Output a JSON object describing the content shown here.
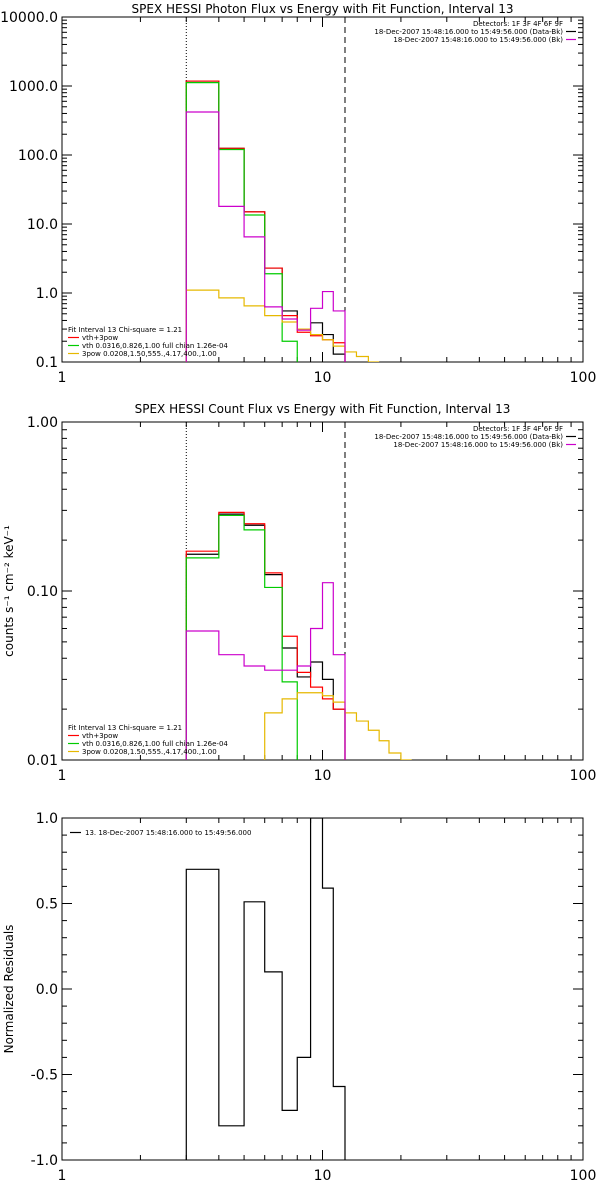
{
  "chart_data": [
    {
      "type": "line",
      "title": "SPEX HESSI Photon Flux vs Energy with Fit Function, Interval 13",
      "xscale": "log",
      "yscale": "log",
      "xlim": [
        1,
        100
      ],
      "ylim": [
        0.1,
        10000
      ],
      "xticks": [
        {
          "value": 1,
          "label": "1"
        },
        {
          "value": 10,
          "label": "10"
        },
        {
          "value": 100,
          "label": "100"
        }
      ],
      "yticks": [
        {
          "value": 0.1,
          "label": "0.1"
        },
        {
          "value": 1,
          "label": "1.0"
        },
        {
          "value": 10,
          "label": "10.0"
        },
        {
          "value": 100,
          "label": "100.0"
        },
        {
          "value": 1000,
          "label": "1000.0"
        },
        {
          "value": 10000,
          "label": "10000.0"
        }
      ],
      "vlines": [
        {
          "x": 3,
          "style": "dotted"
        },
        {
          "x": 12.2,
          "style": "dashed"
        }
      ],
      "legend_top_right": [
        {
          "text": "Detectors: 1F 3F 4F 6F 9F",
          "color": ""
        },
        {
          "text": "18-Dec-2007 15:48:16.000 to 15:49:56.000 (Data-Bk)",
          "color": "#000000"
        },
        {
          "text": "18-Dec-2007 15:48:16.000 to 15:49:56.000 (Bk)",
          "color": "#cc00cc"
        }
      ],
      "legend_bottom_left": [
        {
          "text": "Fit Interval 13   Chi-square = 1.21",
          "color": ""
        },
        {
          "text": "vth+3pow",
          "color": "#ff0000"
        },
        {
          "text": "vth 0.0316,0.826,1.00  full chian 1.26e-04",
          "color": "#00cc00"
        },
        {
          "text": "3pow 0.0208,1.50,555.,4.17,400.,1.00",
          "color": "#e6b800"
        }
      ],
      "series": [
        {
          "name": "18-Dec-2007 15:48:16.000 to 15:49:56.000 (Data-Bk)",
          "color": "#000000",
          "edges": [
            3,
            4,
            5,
            6,
            7,
            8,
            9,
            10,
            11,
            12.2
          ],
          "values": [
            1180,
            125,
            15,
            2.3,
            0.55,
            0.3,
            0.37,
            0.25,
            0.13
          ]
        },
        {
          "name": "vth+3pow",
          "color": "#ff0000",
          "edges": [
            3,
            4,
            5,
            6,
            7,
            8,
            9,
            10,
            11,
            12.2
          ],
          "values": [
            1180,
            125,
            15,
            2.3,
            0.47,
            0.27,
            0.24,
            0.21,
            0.19
          ]
        },
        {
          "name": "vth",
          "color": "#00cc00",
          "edges": [
            3,
            4,
            5,
            6,
            7,
            8
          ],
          "values": [
            1120,
            120,
            13.5,
            1.9,
            0.2
          ]
        },
        {
          "name": "3pow",
          "color": "#e6b800",
          "edges": [
            3,
            4,
            5,
            6,
            7,
            8,
            9,
            10,
            11,
            12.2,
            13.5,
            15,
            16.5
          ],
          "values": [
            1.1,
            0.85,
            0.65,
            0.47,
            0.38,
            0.3,
            0.25,
            0.21,
            0.17,
            0.14,
            0.12,
            0.1
          ]
        },
        {
          "name": "18-Dec-2007 15:48:16.000 to 15:49:56.000 (Bk)",
          "color": "#cc00cc",
          "edges": [
            3,
            4,
            5,
            6,
            7,
            8,
            9,
            10,
            11,
            12.2
          ],
          "values": [
            420,
            18,
            6.5,
            0.63,
            0.42,
            0.29,
            0.6,
            1.05,
            0.55
          ]
        }
      ]
    },
    {
      "type": "line",
      "title": "SPEX HESSI Count Flux vs Energy with Fit Function, Interval 13",
      "ylabel": "counts s⁻¹ cm⁻² keV⁻¹",
      "xscale": "log",
      "yscale": "log",
      "xlim": [
        1,
        100
      ],
      "ylim": [
        0.01,
        1
      ],
      "xticks": [
        {
          "value": 1,
          "label": "1"
        },
        {
          "value": 10,
          "label": "10"
        },
        {
          "value": 100,
          "label": "100"
        }
      ],
      "yticks": [
        {
          "value": 0.01,
          "label": "0.01"
        },
        {
          "value": 0.1,
          "label": "0.10"
        },
        {
          "value": 1,
          "label": "1.00"
        }
      ],
      "vlines": [
        {
          "x": 3,
          "style": "dotted"
        },
        {
          "x": 12.2,
          "style": "dashed"
        }
      ],
      "legend_top_right": [
        {
          "text": "Detectors: 1F 3F 4F 6F 9F",
          "color": ""
        },
        {
          "text": "18-Dec-2007 15:48:16.000 to 15:49:56.000 (Data-Bk)",
          "color": "#000000"
        },
        {
          "text": "18-Dec-2007 15:48:16.000 to 15:49:56.000 (Bk)",
          "color": "#cc00cc"
        }
      ],
      "legend_bottom_left": [
        {
          "text": "Fit Interval 13   Chi-square = 1.21",
          "color": ""
        },
        {
          "text": "vth+3pow",
          "color": "#ff0000"
        },
        {
          "text": "vth 0.0316,0.826,1.00  full chian 1.26e-04",
          "color": "#00cc00"
        },
        {
          "text": "3pow 0.0208,1.50,555.,4.17,400.,1.00",
          "color": "#e6b800"
        }
      ],
      "series": [
        {
          "name": "18-Dec-2007 15:48:16.000 to 15:49:56.000 (Data-Bk)",
          "color": "#000000",
          "edges": [
            3,
            4,
            5,
            6,
            7,
            8,
            9,
            10,
            11,
            12.2
          ],
          "values": [
            0.165,
            0.285,
            0.245,
            0.125,
            0.046,
            0.031,
            0.038,
            0.03,
            0.02
          ]
        },
        {
          "name": "vth+3pow",
          "color": "#ff0000",
          "edges": [
            3,
            4,
            5,
            6,
            7,
            8,
            9,
            10,
            11,
            12.2
          ],
          "values": [
            0.172,
            0.292,
            0.25,
            0.128,
            0.054,
            0.033,
            0.027,
            0.023,
            0.02
          ]
        },
        {
          "name": "vth",
          "color": "#00cc00",
          "edges": [
            3,
            4,
            5,
            6,
            7,
            8
          ],
          "values": [
            0.157,
            0.28,
            0.23,
            0.105,
            0.029
          ]
        },
        {
          "name": "3pow",
          "color": "#e6b800",
          "edges": [
            6,
            7,
            8,
            9,
            10,
            11,
            12.2,
            13.5,
            15,
            16.5,
            18,
            20,
            22
          ],
          "values": [
            0.019,
            0.023,
            0.025,
            0.025,
            0.024,
            0.022,
            0.019,
            0.017,
            0.015,
            0.013,
            0.011,
            0.01
          ]
        },
        {
          "name": "18-Dec-2007 15:48:16.000 to 15:49:56.000 (Bk)",
          "color": "#cc00cc",
          "edges": [
            3,
            4,
            5,
            6,
            7,
            8,
            9,
            10,
            11,
            12.2
          ],
          "values": [
            0.058,
            0.042,
            0.036,
            0.034,
            0.034,
            0.036,
            0.06,
            0.112,
            0.042
          ]
        }
      ]
    },
    {
      "type": "line",
      "ylabel": "Normalized Residuals",
      "xscale": "log",
      "yscale": "linear",
      "xlim": [
        1,
        100
      ],
      "ylim": [
        -1,
        1
      ],
      "xticks": [
        {
          "value": 1,
          "label": "1"
        },
        {
          "value": 10,
          "label": "10"
        },
        {
          "value": 100,
          "label": "100"
        }
      ],
      "yticks": [
        {
          "value": -1,
          "label": "-1.0"
        },
        {
          "value": -0.5,
          "label": "-0.5"
        },
        {
          "value": 0,
          "label": "0.0"
        },
        {
          "value": 0.5,
          "label": "0.5"
        },
        {
          "value": 1,
          "label": "1.0"
        }
      ],
      "legend_top_left": [
        {
          "text": "13. 18-Dec-2007 15:48:16.000 to 15:49:56.000",
          "color": "#000000"
        }
      ],
      "series": [
        {
          "name": "13. 18-Dec-2007 15:48:16.000 to 15:49:56.000",
          "color": "#000000",
          "edges": [
            3,
            4,
            5,
            6,
            7,
            8,
            9,
            10,
            11,
            12.2
          ],
          "values": [
            0.7,
            -0.8,
            0.51,
            0.1,
            -0.71,
            -0.4,
            1.0,
            0.59,
            -0.57
          ]
        }
      ]
    }
  ]
}
